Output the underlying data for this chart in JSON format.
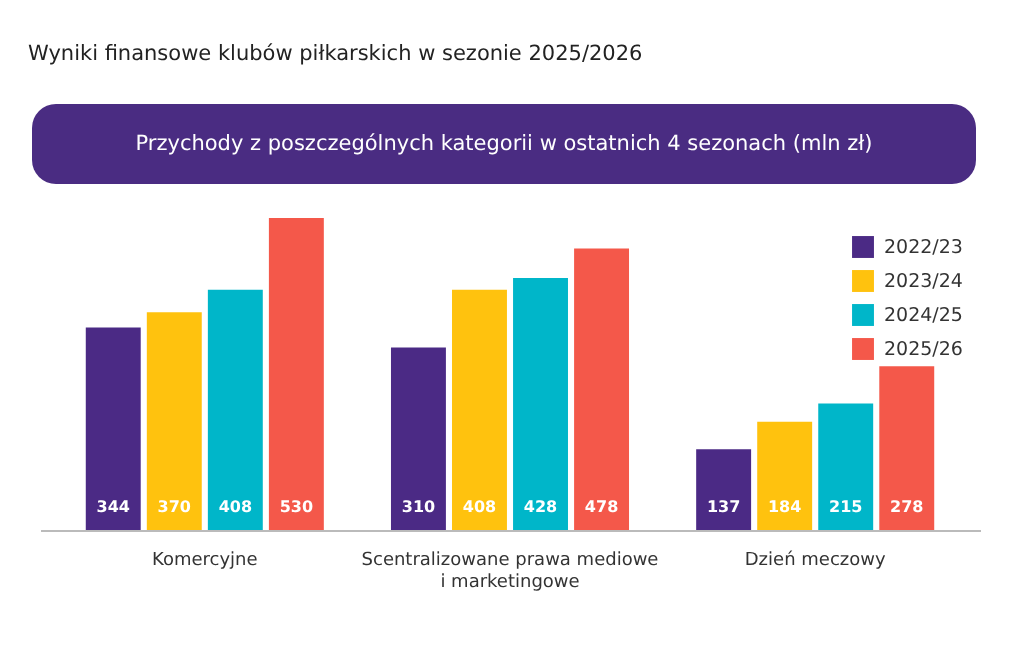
{
  "chart_data": {
    "type": "bar",
    "title": "Wyniki finansowe klubów piłkarskich w sezonie 2025/2026",
    "subtitle": "Przychody z poszczególnych kategorii w ostatnich 4 sezonach (mln zł)",
    "categories": [
      "Komercyjne",
      "Scentralizowane prawa mediowe i marketingowe",
      "Dzień meczowy"
    ],
    "series": [
      {
        "name": "2022/23",
        "color": "#4b2a85",
        "values": [
          344,
          310,
          137
        ]
      },
      {
        "name": "2023/24",
        "color": "#ffc20e",
        "values": [
          370,
          408,
          184
        ]
      },
      {
        "name": "2024/25",
        "color": "#00b6c9",
        "values": [
          408,
          428,
          215
        ]
      },
      {
        "name": "2025/26",
        "color": "#f4584a",
        "values": [
          530,
          478,
          278
        ]
      }
    ],
    "data_labels": true,
    "legend": "top right"
  }
}
